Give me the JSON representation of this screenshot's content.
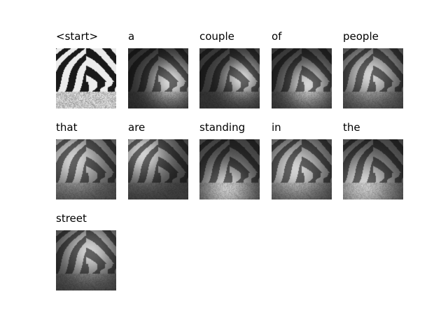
{
  "words": [
    "<start>",
    "a",
    "couple",
    "of",
    "people",
    "that",
    "are",
    "standing",
    "in",
    "the",
    "street"
  ],
  "attention": [
    null,
    {
      "fx": 0.7,
      "fy": 0.55,
      "s": 0.25,
      "base": 0.25
    },
    {
      "fx": 0.7,
      "fy": 0.5,
      "s": 0.22,
      "base": 0.3
    },
    {
      "fx": 0.6,
      "fy": 0.6,
      "s": 0.25,
      "base": 0.3
    },
    {
      "fx": 0.45,
      "fy": 0.45,
      "s": 0.3,
      "base": 0.35
    },
    {
      "fx": 0.3,
      "fy": 0.35,
      "s": 0.35,
      "base": 0.4
    },
    {
      "fx": 0.25,
      "fy": 0.25,
      "s": 0.3,
      "base": 0.35
    },
    {
      "fx": 0.45,
      "fy": 0.8,
      "s": 0.3,
      "base": 0.35
    },
    {
      "fx": 0.4,
      "fy": 0.5,
      "s": 0.35,
      "base": 0.35
    },
    {
      "fx": 0.35,
      "fy": 0.75,
      "s": 0.35,
      "base": 0.35
    },
    {
      "fx": 0.55,
      "fy": 0.35,
      "s": 0.3,
      "base": 0.35
    }
  ]
}
